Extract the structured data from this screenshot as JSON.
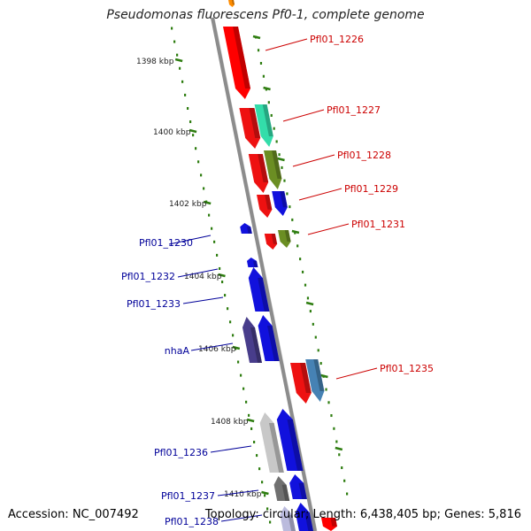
{
  "title": "Pseudomonas fluorescens Pf0-1, complete genome",
  "footer": {
    "accession": "Accession: NC_007492",
    "summary": "Topology: circular; Length: 6,438,405 bp; Genes: 5,816"
  },
  "colors": {
    "backbone": "#8c8c8c",
    "tick": "#2e7d10",
    "forward_label": "#cc0000",
    "reverse_label": "#000099"
  },
  "ticks": [
    {
      "label": "1398 kbp"
    },
    {
      "label": "1400 kbp"
    },
    {
      "label": "1402 kbp"
    },
    {
      "label": "1404 kbp"
    },
    {
      "label": "1406 kbp"
    },
    {
      "label": "1408 kbp"
    },
    {
      "label": "1410 kbp"
    }
  ],
  "forward_labels": [
    {
      "text": "Pfl01_1226"
    },
    {
      "text": "Pfl01_1227"
    },
    {
      "text": "Pfl01_1228"
    },
    {
      "text": "Pfl01_1229"
    },
    {
      "text": "Pfl01_1231"
    },
    {
      "text": "Pfl01_1235"
    }
  ],
  "reverse_labels": [
    {
      "text": "Pfl01_1230"
    },
    {
      "text": "Pfl01_1232"
    },
    {
      "text": "Pfl01_1233"
    },
    {
      "text": "nhaA"
    },
    {
      "text": "Pfl01_1236"
    },
    {
      "text": "Pfl01_1237"
    },
    {
      "text": "Pfl01_1238"
    }
  ],
  "genes": [
    {
      "name": "Pfl01_1226",
      "strand": "forward",
      "color": "#ff0000"
    },
    {
      "name": "Pfl01_1226-cog",
      "strand": "forward",
      "color": "#ff0000"
    },
    {
      "name": "Pfl01_1227",
      "strand": "forward",
      "color": "#ee1111"
    },
    {
      "name": "Pfl01_1227-cog",
      "strand": "forward",
      "color": "#33ddaa"
    },
    {
      "name": "Pfl01_1228",
      "strand": "forward",
      "color": "#ee1111"
    },
    {
      "name": "Pfl01_1228-cog",
      "strand": "forward",
      "color": "#6b8e23"
    },
    {
      "name": "Pfl01_1229",
      "strand": "forward",
      "color": "#ee1111"
    },
    {
      "name": "Pfl01_1229-cog",
      "strand": "forward",
      "color": "#1111dd"
    },
    {
      "name": "Pfl01_1230",
      "strand": "reverse",
      "color": "#1111dd"
    },
    {
      "name": "Pfl01_1231",
      "strand": "forward",
      "color": "#ee1111"
    },
    {
      "name": "Pfl01_1231-cog",
      "strand": "forward",
      "color": "#6b8e23"
    },
    {
      "name": "Pfl01_1232",
      "strand": "reverse",
      "color": "#1111dd"
    },
    {
      "name": "Pfl01_1233",
      "strand": "reverse",
      "color": "#1111dd"
    },
    {
      "name": "nhaA",
      "strand": "reverse",
      "color": "#1111dd"
    },
    {
      "name": "nhaA-cog",
      "strand": "reverse",
      "color": "#483d8b"
    },
    {
      "name": "Pfl01_1235",
      "strand": "forward",
      "color": "#ee1111"
    },
    {
      "name": "Pfl01_1235-cog",
      "strand": "forward",
      "color": "#4682b4"
    },
    {
      "name": "Pfl01_1236",
      "strand": "reverse",
      "color": "#1111dd"
    },
    {
      "name": "Pfl01_1236-cog",
      "strand": "reverse",
      "color": "#c8c8c8"
    },
    {
      "name": "Pfl01_1237",
      "strand": "reverse",
      "color": "#1111dd"
    },
    {
      "name": "Pfl01_1237-cog",
      "strand": "reverse",
      "color": "#707070"
    }
  ]
}
